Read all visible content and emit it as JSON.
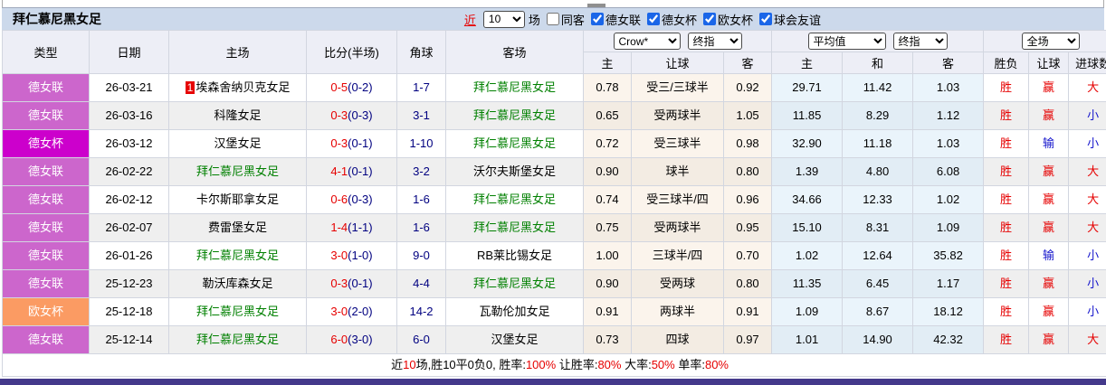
{
  "header": {
    "team_title": "拜仁慕尼黑女足",
    "recent_label": "近",
    "recent_count": "10",
    "games_label": "场",
    "same_venue_label": "同客",
    "filters": [
      {
        "label": "德女联",
        "checked": true
      },
      {
        "label": "德女杯",
        "checked": true
      },
      {
        "label": "欧女杯",
        "checked": true
      },
      {
        "label": "球会友谊",
        "checked": true
      }
    ]
  },
  "selects": {
    "bookmaker": "Crow*",
    "final1": "终指",
    "average": "平均值",
    "final2": "终指",
    "scope": "全场"
  },
  "columns": {
    "type": "类型",
    "date": "日期",
    "home": "主场",
    "score": "比分(半场)",
    "corner": "角球",
    "away": "客场",
    "odds_home": "主",
    "handicap": "让球",
    "odds_away": "客",
    "avg_home": "主",
    "avg_draw": "和",
    "avg_away": "客",
    "result": "胜负",
    "let_result": "让球",
    "goals": "进球数"
  },
  "rows": [
    {
      "type": {
        "label": "德女联",
        "style": "league"
      },
      "date": "26-03-21",
      "home": {
        "name": "埃森舍纳贝克女足",
        "badge": "1",
        "team": false
      },
      "score": {
        "main": "0-5",
        "half": "(0-2)"
      },
      "corner": "1-7",
      "away": {
        "name": "拜仁慕尼黑女足",
        "team": true
      },
      "odds": {
        "home": "0.78",
        "handicap": "受三/三球半",
        "away": "0.92"
      },
      "avg": {
        "home": "29.71",
        "draw": "11.42",
        "away": "1.03"
      },
      "result": {
        "text": "胜",
        "color": "red"
      },
      "let": {
        "text": "赢",
        "color": "red"
      },
      "goals": {
        "text": "大",
        "color": "red"
      }
    },
    {
      "type": {
        "label": "德女联",
        "style": "league"
      },
      "date": "26-03-16",
      "home": {
        "name": "科隆女足",
        "badge": "",
        "team": false
      },
      "score": {
        "main": "0-3",
        "half": "(0-3)"
      },
      "corner": "3-1",
      "away": {
        "name": "拜仁慕尼黑女足",
        "team": true
      },
      "odds": {
        "home": "0.65",
        "handicap": "受两球半",
        "away": "1.05"
      },
      "avg": {
        "home": "11.85",
        "draw": "8.29",
        "away": "1.12"
      },
      "result": {
        "text": "胜",
        "color": "red"
      },
      "let": {
        "text": "赢",
        "color": "red"
      },
      "goals": {
        "text": "小",
        "color": "blue"
      }
    },
    {
      "type": {
        "label": "德女杯",
        "style": "cup"
      },
      "date": "26-03-12",
      "home": {
        "name": "汉堡女足",
        "badge": "",
        "team": false
      },
      "score": {
        "main": "0-3",
        "half": "(0-1)"
      },
      "corner": "1-10",
      "away": {
        "name": "拜仁慕尼黑女足",
        "team": true
      },
      "odds": {
        "home": "0.72",
        "handicap": "受三球半",
        "away": "0.98"
      },
      "avg": {
        "home": "32.90",
        "draw": "11.18",
        "away": "1.03"
      },
      "result": {
        "text": "胜",
        "color": "red"
      },
      "let": {
        "text": "输",
        "color": "blue"
      },
      "goals": {
        "text": "小",
        "color": "blue"
      }
    },
    {
      "type": {
        "label": "德女联",
        "style": "league"
      },
      "date": "26-02-22",
      "home": {
        "name": "拜仁慕尼黑女足",
        "badge": "",
        "team": true
      },
      "score": {
        "main": "4-1",
        "half": "(0-1)"
      },
      "corner": "3-2",
      "away": {
        "name": "沃尔夫斯堡女足",
        "team": false
      },
      "odds": {
        "home": "0.90",
        "handicap": "球半",
        "away": "0.80"
      },
      "avg": {
        "home": "1.39",
        "draw": "4.80",
        "away": "6.08"
      },
      "result": {
        "text": "胜",
        "color": "red"
      },
      "let": {
        "text": "赢",
        "color": "red"
      },
      "goals": {
        "text": "大",
        "color": "red"
      }
    },
    {
      "type": {
        "label": "德女联",
        "style": "league"
      },
      "date": "26-02-12",
      "home": {
        "name": "卡尔斯耶拿女足",
        "badge": "",
        "team": false
      },
      "score": {
        "main": "0-6",
        "half": "(0-3)"
      },
      "corner": "1-6",
      "away": {
        "name": "拜仁慕尼黑女足",
        "team": true
      },
      "odds": {
        "home": "0.74",
        "handicap": "受三球半/四",
        "away": "0.96"
      },
      "avg": {
        "home": "34.66",
        "draw": "12.33",
        "away": "1.02"
      },
      "result": {
        "text": "胜",
        "color": "red"
      },
      "let": {
        "text": "赢",
        "color": "red"
      },
      "goals": {
        "text": "大",
        "color": "red"
      }
    },
    {
      "type": {
        "label": "德女联",
        "style": "league"
      },
      "date": "26-02-07",
      "home": {
        "name": "费雷堡女足",
        "badge": "",
        "team": false
      },
      "score": {
        "main": "1-4",
        "half": "(1-1)"
      },
      "corner": "1-6",
      "away": {
        "name": "拜仁慕尼黑女足",
        "team": true
      },
      "odds": {
        "home": "0.75",
        "handicap": "受两球半",
        "away": "0.95"
      },
      "avg": {
        "home": "15.10",
        "draw": "8.31",
        "away": "1.09"
      },
      "result": {
        "text": "胜",
        "color": "red"
      },
      "let": {
        "text": "赢",
        "color": "red"
      },
      "goals": {
        "text": "大",
        "color": "red"
      }
    },
    {
      "type": {
        "label": "德女联",
        "style": "league"
      },
      "date": "26-01-26",
      "home": {
        "name": "拜仁慕尼黑女足",
        "badge": "",
        "team": true
      },
      "score": {
        "main": "3-0",
        "half": "(1-0)"
      },
      "corner": "9-0",
      "away": {
        "name": "RB莱比锡女足",
        "team": false
      },
      "odds": {
        "home": "1.00",
        "handicap": "三球半/四",
        "away": "0.70"
      },
      "avg": {
        "home": "1.02",
        "draw": "12.64",
        "away": "35.82"
      },
      "result": {
        "text": "胜",
        "color": "red"
      },
      "let": {
        "text": "输",
        "color": "blue"
      },
      "goals": {
        "text": "小",
        "color": "blue"
      }
    },
    {
      "type": {
        "label": "德女联",
        "style": "league"
      },
      "date": "25-12-23",
      "home": {
        "name": "勒沃库森女足",
        "badge": "",
        "team": false
      },
      "score": {
        "main": "0-3",
        "half": "(0-1)"
      },
      "corner": "4-4",
      "away": {
        "name": "拜仁慕尼黑女足",
        "team": true
      },
      "odds": {
        "home": "0.90",
        "handicap": "受两球",
        "away": "0.80"
      },
      "avg": {
        "home": "11.35",
        "draw": "6.45",
        "away": "1.17"
      },
      "result": {
        "text": "胜",
        "color": "red"
      },
      "let": {
        "text": "赢",
        "color": "red"
      },
      "goals": {
        "text": "小",
        "color": "blue"
      }
    },
    {
      "type": {
        "label": "欧女杯",
        "style": "euro"
      },
      "date": "25-12-18",
      "home": {
        "name": "拜仁慕尼黑女足",
        "badge": "",
        "team": true
      },
      "score": {
        "main": "3-0",
        "half": "(2-0)"
      },
      "corner": "14-2",
      "away": {
        "name": "瓦勒伦加女足",
        "team": false
      },
      "odds": {
        "home": "0.91",
        "handicap": "两球半",
        "away": "0.91"
      },
      "avg": {
        "home": "1.09",
        "draw": "8.67",
        "away": "18.12"
      },
      "result": {
        "text": "胜",
        "color": "red"
      },
      "let": {
        "text": "赢",
        "color": "red"
      },
      "goals": {
        "text": "小",
        "color": "blue"
      }
    },
    {
      "type": {
        "label": "德女联",
        "style": "league"
      },
      "date": "25-12-14",
      "home": {
        "name": "拜仁慕尼黑女足",
        "badge": "",
        "team": true
      },
      "score": {
        "main": "6-0",
        "half": "(3-0)"
      },
      "corner": "6-0",
      "away": {
        "name": "汉堡女足",
        "team": false
      },
      "odds": {
        "home": "0.73",
        "handicap": "四球",
        "away": "0.97"
      },
      "avg": {
        "home": "1.01",
        "draw": "14.90",
        "away": "42.32"
      },
      "result": {
        "text": "胜",
        "color": "red"
      },
      "let": {
        "text": "赢",
        "color": "red"
      },
      "goals": {
        "text": "大",
        "color": "red"
      }
    }
  ],
  "footer": {
    "segments": [
      {
        "text": "近",
        "color": "black"
      },
      {
        "text": "10",
        "color": "red"
      },
      {
        "text": "场,胜10平0负0, 胜率:",
        "color": "black"
      },
      {
        "text": "100%",
        "color": "red"
      },
      {
        "text": " 让胜率:",
        "color": "black"
      },
      {
        "text": "80%",
        "color": "red"
      },
      {
        "text": " 大率:",
        "color": "black"
      },
      {
        "text": "50%",
        "color": "red"
      },
      {
        "text": " 单率:",
        "color": "black"
      },
      {
        "text": "80%",
        "color": "red"
      }
    ]
  },
  "colors": {
    "title_bar": "#CCD9EB",
    "league_badge": "#CC66CC",
    "cup_badge": "#CC00CC",
    "euro_badge": "#FB9B63",
    "tracked_team": "#008000",
    "score": "#E60000",
    "half_score": "#000080",
    "win_red": "#E60000",
    "lose_blue": "#1414CC",
    "bottom_bar": "#44398B"
  }
}
